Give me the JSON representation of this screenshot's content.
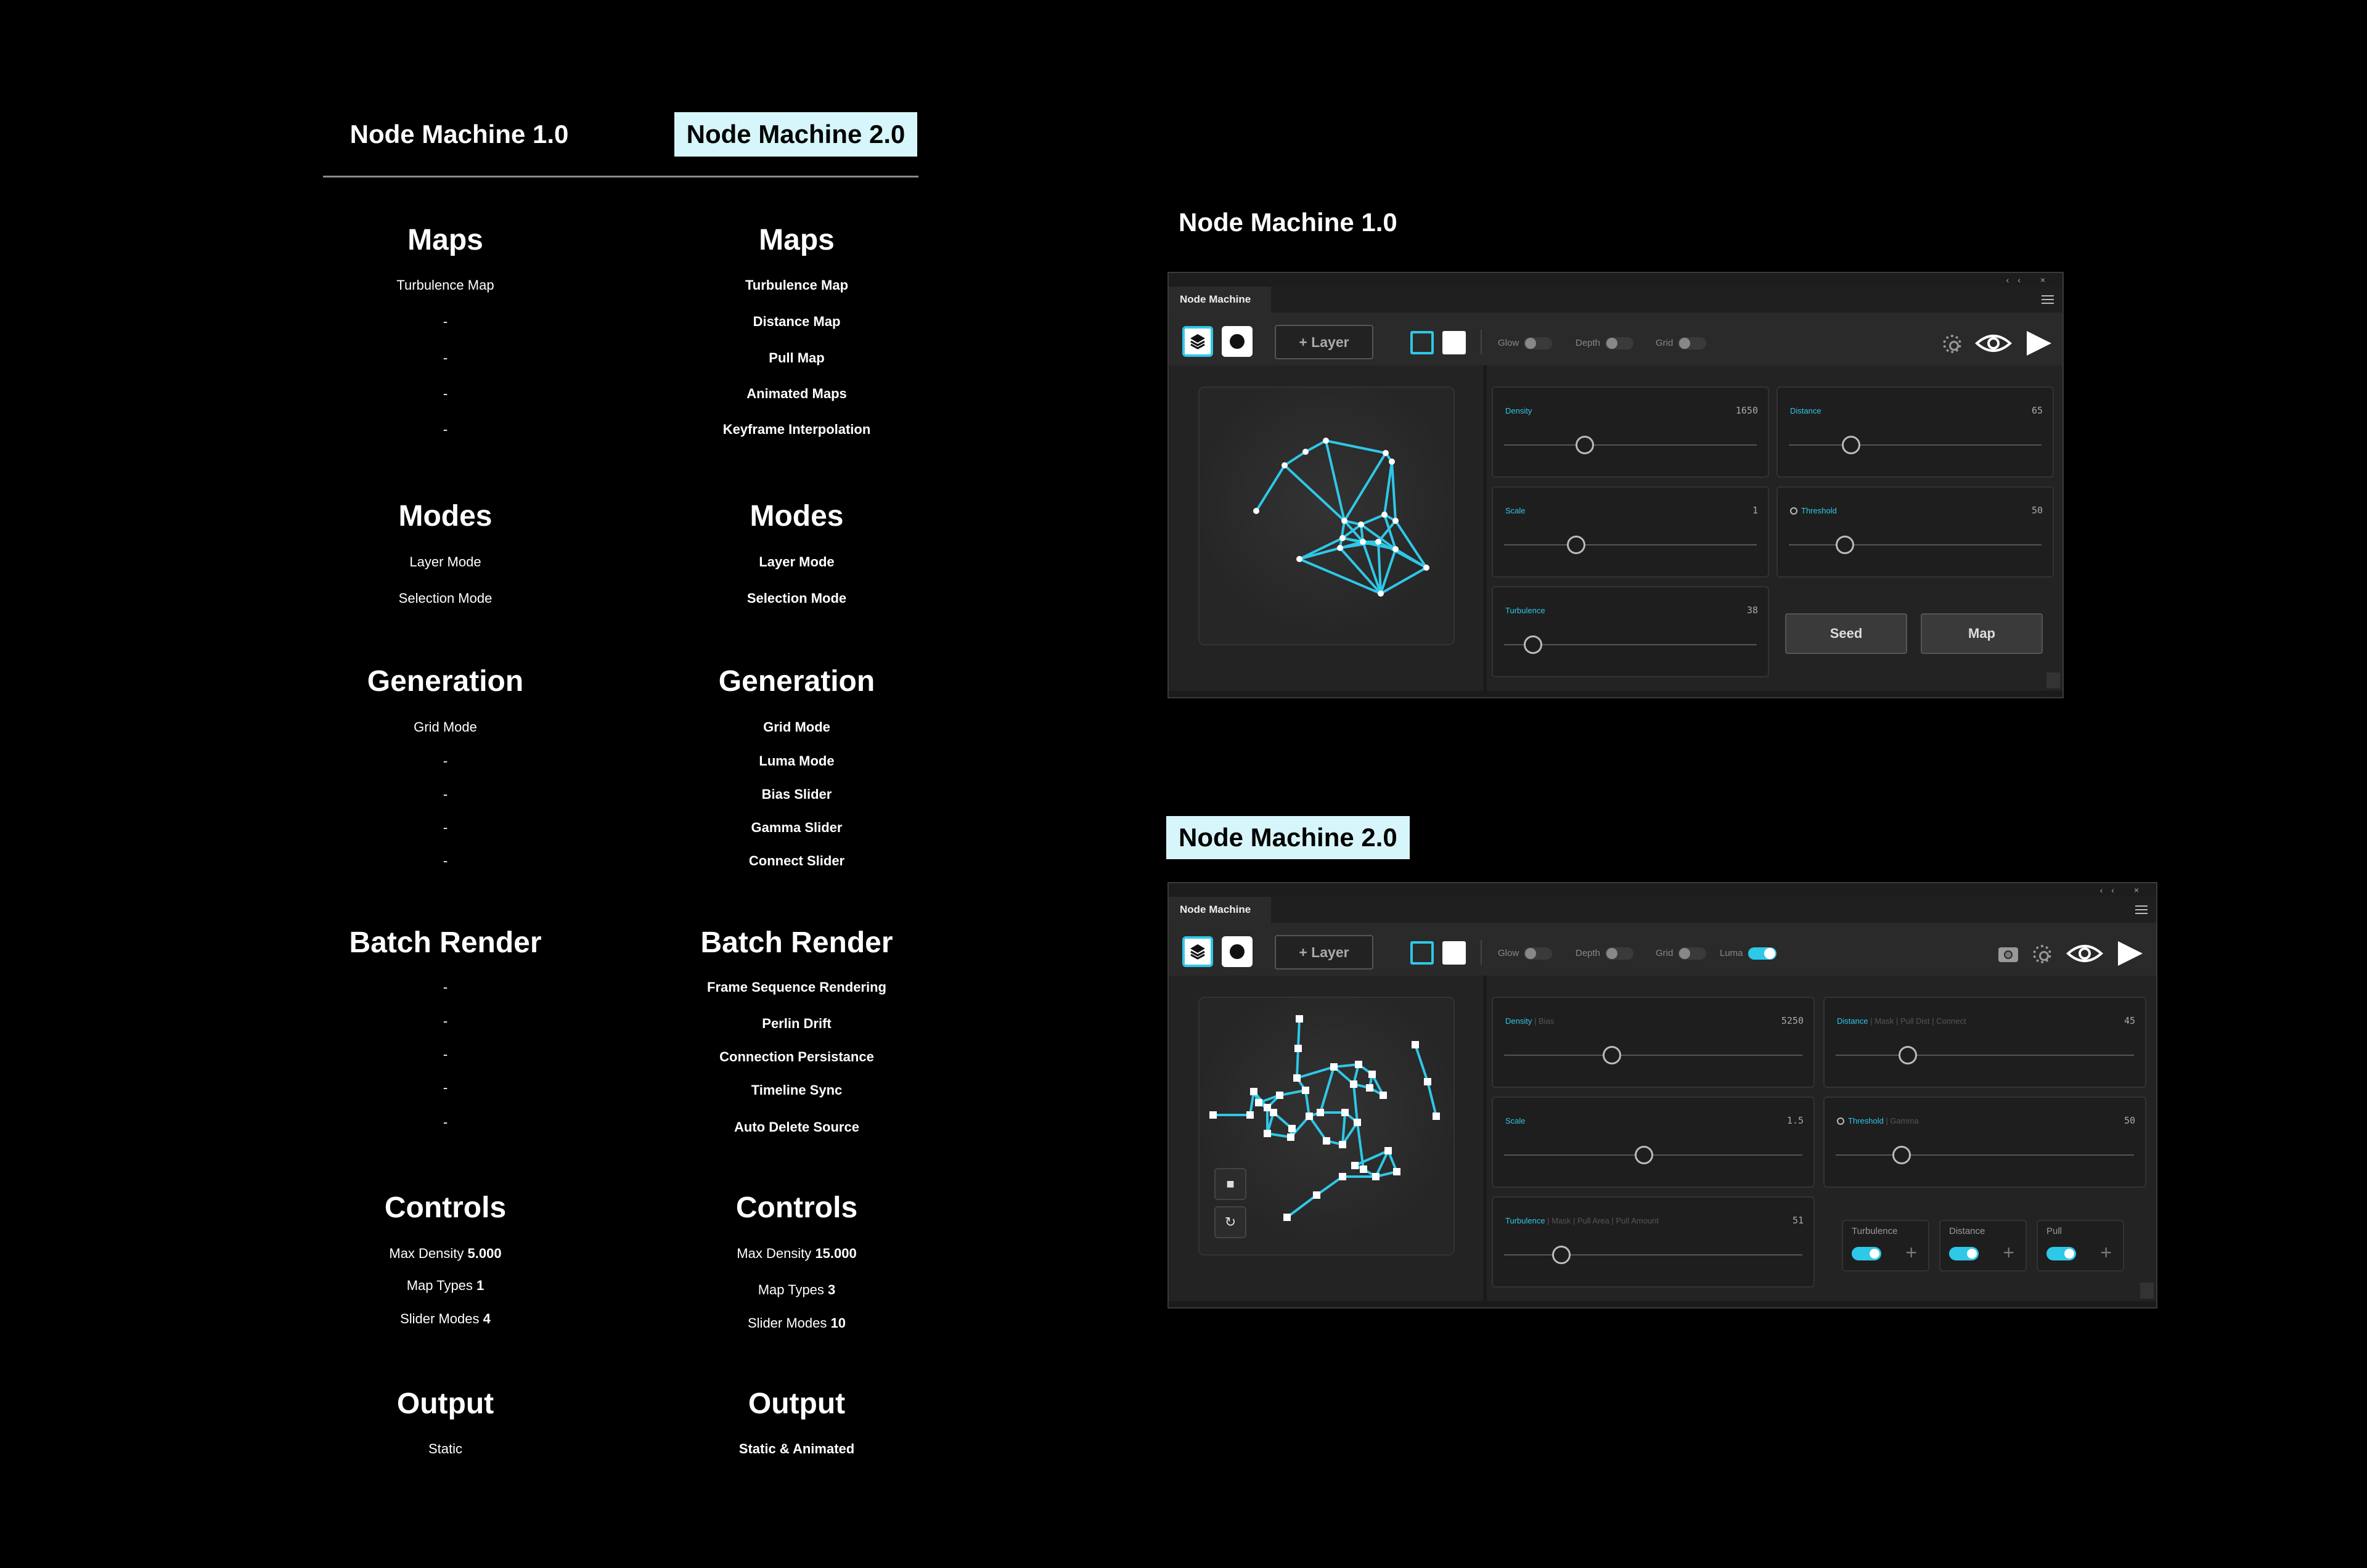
{
  "header": {
    "v1": "Node Machine 1.0",
    "v2": "Node Machine 2.0"
  },
  "sections": [
    {
      "title": "Maps",
      "v1": [
        "Turbulence Map",
        "-",
        "-",
        "-",
        "-"
      ],
      "v2": [
        "Turbulence Map",
        "Distance Map",
        "Pull Map",
        "Animated Maps",
        "Keyframe Interpolation"
      ]
    },
    {
      "title": "Modes",
      "v1": [
        "Layer Mode",
        "Selection Mode"
      ],
      "v2": [
        "Layer Mode",
        "Selection Mode"
      ]
    },
    {
      "title": "Generation",
      "v1": [
        "Grid Mode",
        "-",
        "-",
        "-",
        "-"
      ],
      "v2": [
        "Grid Mode",
        "Luma Mode",
        "Bias Slider",
        "Gamma Slider",
        "Connect Slider"
      ]
    },
    {
      "title": "Batch Render",
      "v1": [
        "-",
        "-",
        "-",
        "-",
        "-"
      ],
      "v2": [
        "Frame Sequence Rendering",
        "Perlin Drift",
        "Connection Persistance",
        "Timeline Sync",
        "Auto Delete Source"
      ]
    },
    {
      "title": "Controls",
      "v1": [
        {
          "label": "Max Density",
          "value": "5.000"
        },
        {
          "label": "Map Types",
          "value": "1"
        },
        {
          "label": "Slider Modes",
          "value": "4"
        }
      ],
      "v2": [
        {
          "label": "Max Density",
          "value": "15.000"
        },
        {
          "label": "Map Types",
          "value": "3"
        },
        {
          "label": "Slider Modes",
          "value": "10"
        }
      ]
    },
    {
      "title": "Output",
      "v1": [
        "Static"
      ],
      "v2": [
        "Static & Animated"
      ]
    }
  ],
  "panel1": {
    "title": "Node Machine 1.0",
    "tab": "Node Machine",
    "add_layer": "+ Layer",
    "toggles": [
      "Glow",
      "Depth",
      "Grid"
    ],
    "sliders": {
      "density": {
        "label": "Density",
        "value": "1650"
      },
      "distance": {
        "label": "Distance",
        "value": "65"
      },
      "scale": {
        "label": "Scale",
        "value": "1"
      },
      "threshold": {
        "label": "Threshold",
        "value": "50"
      },
      "turbulence": {
        "label": "Turbulence",
        "value": "38"
      }
    },
    "seed": "Seed",
    "map": "Map"
  },
  "panel2": {
    "title": "Node Machine 2.0",
    "tab": "Node Machine",
    "add_layer": "+ Layer",
    "toggles": [
      "Glow",
      "Depth",
      "Grid",
      "Luma"
    ],
    "sliders": {
      "density": {
        "label": "Density",
        "sub": [
          "Bias"
        ],
        "value": "5250"
      },
      "distance": {
        "label": "Distance",
        "sub": [
          "Mask",
          "Pull Dist",
          "Connect"
        ],
        "value": "45"
      },
      "scale": {
        "label": "Scale",
        "value": "1.5"
      },
      "threshold": {
        "label": "Threshold",
        "sub": [
          "Gamma"
        ],
        "value": "50"
      },
      "turbulence": {
        "label": "Turbulence",
        "sub": [
          "Mask",
          "Pull Area",
          "Pull Amount"
        ],
        "value": "51"
      }
    },
    "maps": [
      "Turbulence",
      "Distance",
      "Pull"
    ],
    "win_controls": "‹‹ ×"
  },
  "colors": {
    "accent": "#2ec8e8",
    "highlight": "#d7f6fb",
    "panel": "#262626"
  },
  "icons": [
    "layers-icon",
    "record-icon",
    "settings-icon",
    "eye-icon",
    "play-icon",
    "camera-icon",
    "stop-icon",
    "refresh-icon",
    "menu-icon"
  ]
}
